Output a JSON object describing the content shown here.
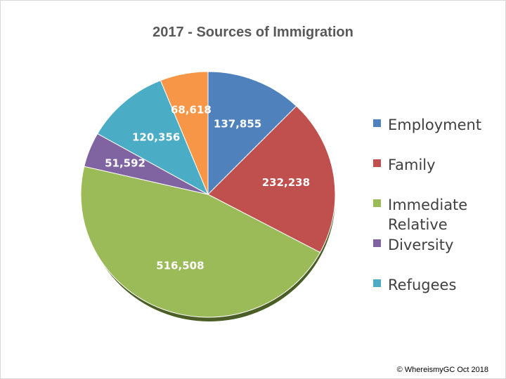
{
  "chart_data": {
    "type": "pie",
    "title": "2017 - Sources of Immigration",
    "slices": [
      {
        "name": "Employment",
        "value": 137855,
        "label": "137,855",
        "color": "#4f81bd"
      },
      {
        "name": "Family",
        "value": 232238,
        "label": "232,238",
        "color": "#c0504d"
      },
      {
        "name": "Immediate Relative",
        "value": 516508,
        "label": "516,508",
        "color": "#9bbb59"
      },
      {
        "name": "Diversity",
        "value": 51592,
        "label": "51,592",
        "color": "#8064a2"
      },
      {
        "name": "Refugees",
        "value": 120356,
        "label": "120,356",
        "color": "#4bacc6"
      },
      {
        "name": "",
        "value": 68618,
        "label": "68,618",
        "color": "#f79646"
      }
    ],
    "legend": {
      "placement": "right",
      "entries": [
        "Employment",
        "Family",
        "Immediate Relative",
        "Diversity",
        "Refugees"
      ]
    },
    "start_angle": "12 o'clock, clockwise"
  },
  "footer": "© WhereismyGC  Oct 2018"
}
